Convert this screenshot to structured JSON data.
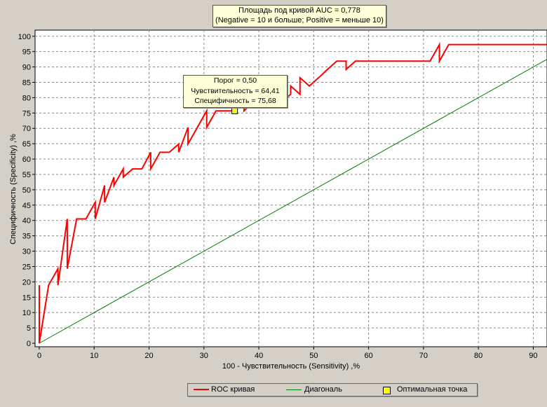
{
  "info_box": {
    "line1": "Площадь под кривой AUC = 0,778",
    "line2": "(Negative = 10 и больше; Positive = меньше 10)"
  },
  "tooltip": {
    "line1": "Порог =  0,50",
    "line2": "Чувствительность = 64,41",
    "line3": "Специфичность = 75,68"
  },
  "legend": {
    "roc": "ROC кривая",
    "diagonal": "Диагональ",
    "optimal": "Оптимальная точка"
  },
  "colors": {
    "roc": "#ff0000",
    "diagonal": "#008000",
    "optimal": "#ffff00",
    "plot_bg": "#ffffff",
    "grid": "#808080"
  },
  "chart_data": {
    "type": "line",
    "xlabel": "100 - Чувствительность (Sensitivity) ,%",
    "ylabel": "Специфичность (Specificity) ,%",
    "xlim": [
      0,
      92.5
    ],
    "ylim": [
      0,
      102
    ],
    "xticks": [
      0,
      10,
      20,
      30,
      40,
      50,
      60,
      70,
      80,
      90
    ],
    "yticks": [
      0,
      5,
      10,
      15,
      20,
      25,
      30,
      35,
      40,
      45,
      50,
      55,
      60,
      65,
      70,
      75,
      80,
      85,
      90,
      95,
      100
    ],
    "grid": true,
    "legend_position": "bottom",
    "series": [
      {
        "name": "ROC кривая",
        "x": [
          0,
          0,
          0,
          1.7,
          3.4,
          3.4,
          5.1,
          5.1,
          6.8,
          8.5,
          10.2,
          10.2,
          11.9,
          11.9,
          13.6,
          13.6,
          15.3,
          15.3,
          17,
          18.7,
          20.3,
          20.3,
          22,
          23.7,
          25.4,
          25.4,
          27.1,
          27.1,
          28.8,
          30.5,
          30.5,
          32.2,
          33.9,
          35.6,
          37.3,
          37.3,
          38.9,
          40.6,
          42.4,
          44.1,
          44.1,
          45.8,
          45.8,
          47.5,
          47.5,
          49.2,
          50.9,
          52.5,
          54.2,
          55.9,
          55.9,
          57.6,
          59.3,
          61,
          62.7,
          64.4,
          66.1,
          67.8,
          69.5,
          71.2,
          72.9,
          72.9,
          74.6,
          76.3,
          78,
          80,
          82,
          84,
          86,
          88,
          90,
          92.5
        ],
        "y": [
          0,
          18.9,
          0,
          18.9,
          24.3,
          18.9,
          40.5,
          24.3,
          40.5,
          40.5,
          45.9,
          40.5,
          51.4,
          45.9,
          54.1,
          51.4,
          56.8,
          54.1,
          56.8,
          56.8,
          62.2,
          56.8,
          62.2,
          62.2,
          64.9,
          62.2,
          70.3,
          64.9,
          70.3,
          75.7,
          70.3,
          75.7,
          75.7,
          75.7,
          78.4,
          75.7,
          78.4,
          78.4,
          78.4,
          81.1,
          78.4,
          81.1,
          83.8,
          81.1,
          86.5,
          83.8,
          86.5,
          89.2,
          91.9,
          91.9,
          89.2,
          91.9,
          91.9,
          91.9,
          91.9,
          91.9,
          91.9,
          91.9,
          91.9,
          91.9,
          97.3,
          91.9,
          97.3,
          97.3,
          97.3,
          97.3,
          97.3,
          97.3,
          97.3,
          97.3,
          97.3,
          97.3
        ]
      },
      {
        "name": "Диагональ",
        "x": [
          0,
          92.5
        ],
        "y": [
          0,
          92.5
        ]
      }
    ],
    "optimal_point": {
      "name": "Оптимальная точка",
      "x": 35.6,
      "y": 75.68
    }
  }
}
